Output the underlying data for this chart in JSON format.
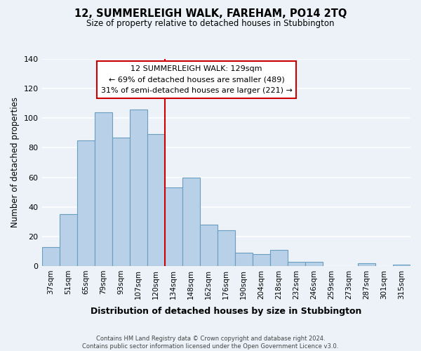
{
  "title": "12, SUMMERLEIGH WALK, FAREHAM, PO14 2TQ",
  "subtitle": "Size of property relative to detached houses in Stubbington",
  "xlabel": "Distribution of detached houses by size in Stubbington",
  "ylabel": "Number of detached properties",
  "bar_color": "#b8d0e8",
  "bar_edge_color": "#6a9ec0",
  "categories": [
    "37sqm",
    "51sqm",
    "65sqm",
    "79sqm",
    "93sqm",
    "107sqm",
    "120sqm",
    "134sqm",
    "148sqm",
    "162sqm",
    "176sqm",
    "190sqm",
    "204sqm",
    "218sqm",
    "232sqm",
    "246sqm",
    "259sqm",
    "273sqm",
    "287sqm",
    "301sqm",
    "315sqm"
  ],
  "values": [
    13,
    35,
    85,
    104,
    87,
    106,
    89,
    53,
    60,
    28,
    24,
    9,
    8,
    11,
    3,
    3,
    0,
    0,
    2,
    0,
    1
  ],
  "vline_x_index": 7,
  "vline_color": "#cc0000",
  "annotation_title": "12 SUMMERLEIGH WALK: 129sqm",
  "annotation_line1": "← 69% of detached houses are smaller (489)",
  "annotation_line2": "31% of semi-detached houses are larger (221) →",
  "annotation_box_color": "#ffffff",
  "annotation_box_edge": "#cc0000",
  "ylim": [
    0,
    140
  ],
  "yticks": [
    0,
    20,
    40,
    60,
    80,
    100,
    120,
    140
  ],
  "footer1": "Contains HM Land Registry data © Crown copyright and database right 2024.",
  "footer2": "Contains public sector information licensed under the Open Government Licence v3.0.",
  "bg_color": "#ecf2f8"
}
